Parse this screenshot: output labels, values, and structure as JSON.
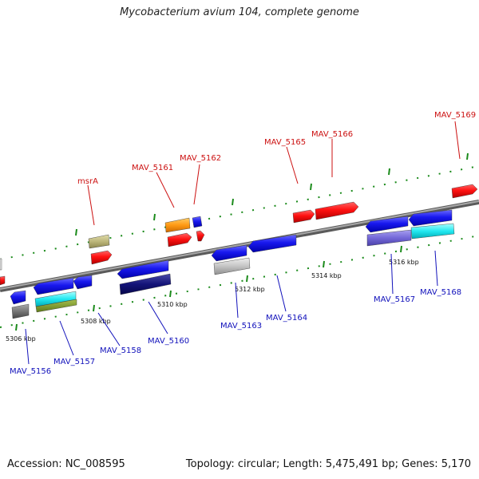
{
  "title": "Mycobacterium avium 104, complete genome",
  "footer": {
    "accession": "Accession: NC_008595",
    "topology": "Topology: circular; Length: 5,475,491 bp; Genes: 5,170"
  },
  "colors": {
    "backbone": "#808080",
    "upper_label": "#cc1111",
    "lower_label": "#1111bb",
    "tick": "#1a8a1a"
  },
  "scale_labels": [
    "5306 kbp",
    "5308 kbp",
    "5310 kbp",
    "5312 kbp",
    "5314 kbp",
    "5316 kbp"
  ],
  "upper_labels": [
    "msrA",
    "MAV_5161",
    "MAV_5162",
    "MAV_5165",
    "MAV_5166",
    "MAV_5169"
  ],
  "lower_labels": [
    "MAV_5156",
    "MAV_5157",
    "MAV_5158",
    "MAV_5160",
    "MAV_5163",
    "MAV_5164",
    "MAV_5167",
    "MAV_5168"
  ],
  "feature_colors": [
    "red",
    "olive",
    "orange",
    "blue",
    "gray",
    "cyan",
    "navy",
    "slateblue",
    "darkgray"
  ]
}
